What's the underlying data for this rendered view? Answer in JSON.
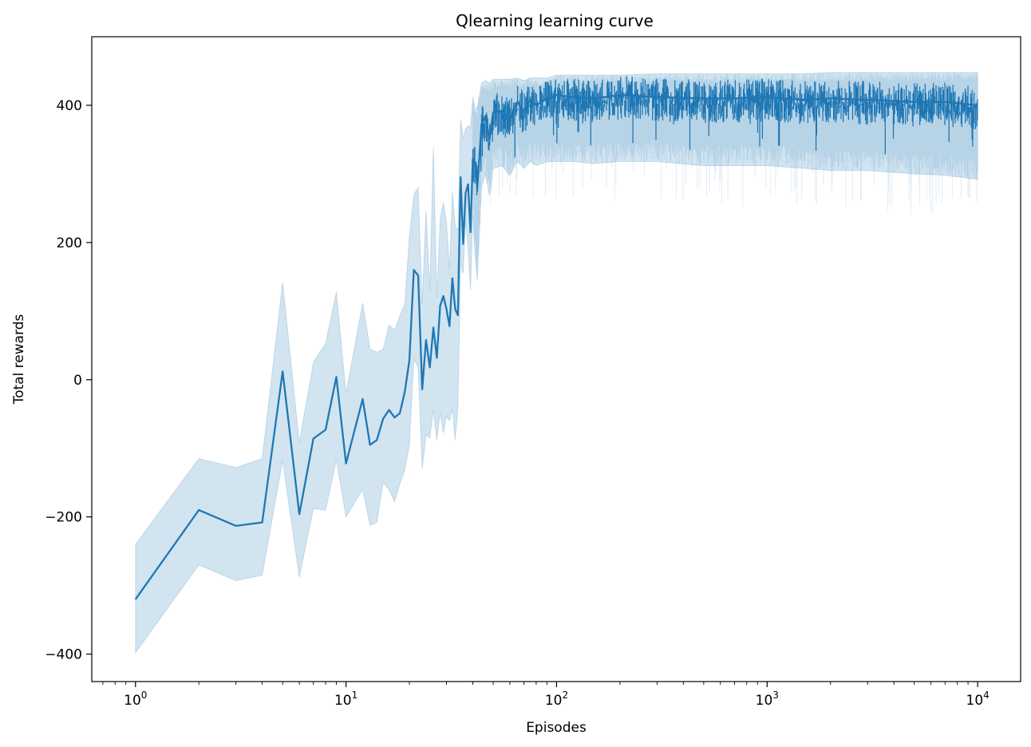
{
  "chart_data": {
    "type": "line",
    "title": "Qlearning learning curve",
    "xlabel": "Episodes",
    "ylabel": "Total rewards",
    "xscale": "log",
    "xlim": [
      0.62,
      16000
    ],
    "ylim": [
      -440,
      500
    ],
    "x_ticks": [
      {
        "value": 1,
        "base": "10",
        "exp": "0"
      },
      {
        "value": 10,
        "base": "10",
        "exp": "1"
      },
      {
        "value": 100,
        "base": "10",
        "exp": "2"
      },
      {
        "value": 1000,
        "base": "10",
        "exp": "3"
      },
      {
        "value": 10000,
        "base": "10",
        "exp": "4"
      }
    ],
    "y_ticks": [
      {
        "value": -400,
        "label": "−400"
      },
      {
        "value": -200,
        "label": "−200"
      },
      {
        "value": 0,
        "label": "0"
      },
      {
        "value": 200,
        "label": "200"
      },
      {
        "value": 400,
        "label": "400"
      }
    ],
    "grid": false,
    "legend": "none",
    "colors": {
      "line": "#1f77b4",
      "band": "#1f77b4"
    },
    "series": [
      {
        "x": [
          1,
          2,
          3,
          4,
          5,
          6,
          7,
          8,
          9,
          10,
          12,
          13,
          14,
          15,
          16,
          17,
          18,
          19,
          20,
          21,
          22,
          23,
          24,
          25,
          26,
          27,
          28,
          29,
          30,
          31,
          32,
          33,
          34,
          35,
          36,
          37,
          38,
          39,
          40,
          41,
          42,
          44,
          46,
          48,
          50,
          55,
          60,
          65,
          70,
          75,
          80,
          90,
          100,
          120,
          150,
          200,
          300,
          500,
          700,
          1000,
          1500,
          2000,
          3000,
          5000,
          7000,
          10000
        ],
        "y": [
          -320,
          -190,
          -213,
          -208,
          12,
          -196,
          -86,
          -73,
          4,
          -122,
          -28,
          -95,
          -88,
          -57,
          -44,
          -55,
          -49,
          -18,
          28,
          160,
          152,
          -14,
          58,
          18,
          76,
          32,
          108,
          122,
          103,
          78,
          148,
          103,
          94,
          295,
          198,
          272,
          285,
          215,
          322,
          316,
          279,
          372,
          385,
          350,
          390,
          392,
          380,
          405,
          392,
          408,
          400,
          410,
          415,
          412,
          410,
          415,
          412,
          410,
          410,
          412,
          408,
          410,
          408,
          405,
          405,
          400
        ],
        "upper": [
          -240,
          -115,
          -128,
          -115,
          142,
          -92,
          25,
          53,
          128,
          -20,
          112,
          45,
          40,
          44,
          80,
          72,
          93,
          110,
          208,
          270,
          280,
          110,
          248,
          130,
          340,
          120,
          234,
          258,
          230,
          160,
          275,
          224,
          218,
          380,
          352,
          366,
          370,
          368,
          412,
          396,
          396,
          432,
          436,
          432,
          438,
          438,
          438,
          440,
          436,
          440,
          440,
          440,
          444,
          444,
          444,
          444,
          446,
          446,
          446,
          446,
          446,
          448,
          448,
          448,
          448,
          448
        ],
        "lower": [
          -398,
          -270,
          -293,
          -285,
          -118,
          -288,
          -188,
          -190,
          -117,
          -200,
          -160,
          -212,
          -208,
          -150,
          -160,
          -178,
          -152,
          -132,
          -95,
          30,
          18,
          -130,
          -80,
          -85,
          -44,
          -88,
          -48,
          -78,
          -53,
          -60,
          -42,
          -88,
          -42,
          168,
          155,
          236,
          190,
          130,
          240,
          182,
          145,
          280,
          300,
          268,
          308,
          312,
          298,
          318,
          308,
          318,
          312,
          318,
          318,
          318,
          315,
          318,
          318,
          312,
          312,
          312,
          308,
          305,
          305,
          300,
          298,
          292
        ]
      }
    ]
  }
}
